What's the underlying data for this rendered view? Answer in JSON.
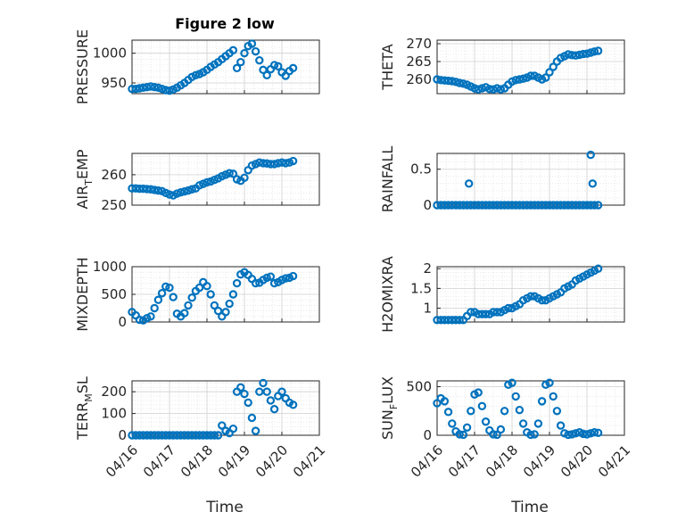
{
  "figure": {
    "title": "Figure 2 low",
    "xlabel": "Time"
  },
  "colors": {
    "series": "#0072BD",
    "axis": "#262626",
    "grid": "#d0d0d0"
  },
  "chart_data": [
    {
      "type": "scatter",
      "ylabel": "PRESSURE",
      "title": "Figure 2 low",
      "xlim": [
        0,
        5
      ],
      "ylim": [
        932,
        1022
      ],
      "yticks": [
        950,
        1000
      ],
      "show_xticklabels": false,
      "x": [
        0.0,
        0.1,
        0.2,
        0.3,
        0.4,
        0.5,
        0.6,
        0.7,
        0.8,
        0.9,
        1.0,
        1.1,
        1.2,
        1.3,
        1.4,
        1.5,
        1.6,
        1.7,
        1.8,
        1.9,
        2.0,
        2.1,
        2.2,
        2.3,
        2.4,
        2.5,
        2.6,
        2.7,
        2.8,
        2.9,
        3.0,
        3.1,
        3.2,
        3.3,
        3.4,
        3.5,
        3.6,
        3.7,
        3.8,
        3.9,
        4.0,
        4.1,
        4.2,
        4.3
      ],
      "y": [
        940,
        940,
        941,
        942,
        943,
        944,
        943,
        942,
        940,
        938,
        937,
        939,
        942,
        946,
        950,
        955,
        960,
        963,
        965,
        968,
        972,
        977,
        981,
        985,
        990,
        995,
        1000,
        1005,
        975,
        985,
        1000,
        1012,
        1016,
        1003,
        988,
        972,
        963,
        973,
        980,
        978,
        968,
        962,
        970,
        975
      ]
    },
    {
      "type": "scatter",
      "ylabel": "THETA",
      "xlim": [
        0,
        5
      ],
      "ylim": [
        256,
        271
      ],
      "yticks": [
        260,
        265,
        270
      ],
      "show_xticklabels": false,
      "x": [
        0.0,
        0.1,
        0.2,
        0.3,
        0.4,
        0.5,
        0.6,
        0.7,
        0.8,
        0.9,
        1.0,
        1.1,
        1.2,
        1.3,
        1.4,
        1.5,
        1.6,
        1.7,
        1.8,
        1.9,
        2.0,
        2.1,
        2.2,
        2.3,
        2.4,
        2.5,
        2.6,
        2.7,
        2.8,
        2.9,
        3.0,
        3.1,
        3.2,
        3.3,
        3.4,
        3.5,
        3.6,
        3.7,
        3.8,
        3.9,
        4.0,
        4.1,
        4.2,
        4.3
      ],
      "y": [
        260,
        259.8,
        259.7,
        259.6,
        259.5,
        259.3,
        259,
        258.8,
        258.5,
        258,
        257.5,
        257.2,
        257.5,
        257.8,
        257.3,
        257.2,
        257.5,
        257.2,
        257.5,
        258.5,
        259.4,
        259.8,
        260,
        260.2,
        260.5,
        261,
        261,
        260.5,
        260,
        260.5,
        262,
        263.5,
        265,
        266,
        266.5,
        267,
        266.8,
        266.7,
        266.9,
        267.1,
        267.2,
        267.5,
        267.8,
        268
      ]
    },
    {
      "type": "scatter",
      "ylabel": "AIR_TEMP",
      "xlim": [
        0,
        5
      ],
      "ylim": [
        250,
        267
      ],
      "yticks": [
        250,
        260
      ],
      "show_xticklabels": false,
      "x": [
        0.0,
        0.1,
        0.2,
        0.3,
        0.4,
        0.5,
        0.6,
        0.7,
        0.8,
        0.9,
        1.0,
        1.1,
        1.2,
        1.3,
        1.4,
        1.5,
        1.6,
        1.7,
        1.8,
        1.9,
        2.0,
        2.1,
        2.2,
        2.3,
        2.4,
        2.5,
        2.6,
        2.7,
        2.8,
        2.9,
        3.0,
        3.1,
        3.2,
        3.3,
        3.4,
        3.5,
        3.6,
        3.7,
        3.8,
        3.9,
        4.0,
        4.1,
        4.2,
        4.3
      ],
      "y": [
        255.5,
        255.5,
        255.4,
        255.4,
        255.3,
        255.2,
        255,
        254.8,
        254.6,
        254,
        253.5,
        253.2,
        253.8,
        254.2,
        254.5,
        254.8,
        255.2,
        255.5,
        256.5,
        257,
        257.5,
        257.8,
        258.3,
        258.8,
        259.5,
        260,
        260.5,
        260.3,
        258.5,
        258,
        259,
        261.5,
        263,
        263.5,
        264,
        263.8,
        263.7,
        263.5,
        263.5,
        263.8,
        264,
        263.8,
        264,
        264.5
      ]
    },
    {
      "type": "scatter",
      "ylabel": "RAINFALL",
      "xlim": [
        0,
        5
      ],
      "ylim": [
        0,
        0.72
      ],
      "yticks": [
        0,
        0.5
      ],
      "show_xticklabels": false,
      "x": [
        0.0,
        0.1,
        0.2,
        0.3,
        0.4,
        0.5,
        0.6,
        0.7,
        0.8,
        0.9,
        1.0,
        1.1,
        1.2,
        1.3,
        1.4,
        1.5,
        1.6,
        1.7,
        1.8,
        1.9,
        2.0,
        2.1,
        2.2,
        2.3,
        2.4,
        2.5,
        2.6,
        2.7,
        2.8,
        2.9,
        3.0,
        3.1,
        3.2,
        3.3,
        3.4,
        3.5,
        3.6,
        3.7,
        3.8,
        3.9,
        4.0,
        4.1,
        4.2,
        4.3,
        0.85,
        4.1,
        4.15
      ],
      "y": [
        0,
        0,
        0,
        0,
        0,
        0,
        0,
        0,
        0,
        0,
        0,
        0,
        0,
        0,
        0,
        0,
        0,
        0,
        0,
        0,
        0,
        0,
        0,
        0,
        0,
        0,
        0,
        0,
        0,
        0,
        0,
        0,
        0,
        0,
        0,
        0,
        0,
        0,
        0,
        0,
        0,
        0,
        0,
        0,
        0.3,
        0.7,
        0.3
      ]
    },
    {
      "type": "scatter",
      "ylabel": "MIXDEPTH",
      "xlim": [
        0,
        5
      ],
      "ylim": [
        0,
        1000
      ],
      "yticks": [
        0,
        500,
        1000
      ],
      "show_xticklabels": false,
      "x": [
        0.0,
        0.1,
        0.2,
        0.3,
        0.4,
        0.5,
        0.6,
        0.7,
        0.8,
        0.9,
        1.0,
        1.1,
        1.2,
        1.3,
        1.4,
        1.5,
        1.6,
        1.7,
        1.8,
        1.9,
        2.0,
        2.1,
        2.2,
        2.3,
        2.4,
        2.5,
        2.6,
        2.7,
        2.8,
        2.9,
        3.0,
        3.1,
        3.2,
        3.3,
        3.4,
        3.5,
        3.6,
        3.7,
        3.8,
        3.9,
        4.0,
        4.1,
        4.2,
        4.3
      ],
      "y": [
        180,
        120,
        40,
        30,
        70,
        100,
        250,
        400,
        520,
        640,
        620,
        450,
        150,
        100,
        160,
        300,
        440,
        560,
        620,
        720,
        650,
        500,
        300,
        200,
        100,
        180,
        330,
        500,
        700,
        860,
        900,
        850,
        780,
        700,
        710,
        760,
        800,
        820,
        700,
        720,
        760,
        790,
        800,
        830
      ]
    },
    {
      "type": "scatter",
      "ylabel": "H2OMIXRA",
      "xlim": [
        0,
        5
      ],
      "ylim": [
        0.65,
        2.05
      ],
      "yticks": [
        1,
        1.5,
        2
      ],
      "show_xticklabels": false,
      "x": [
        0.0,
        0.1,
        0.2,
        0.3,
        0.4,
        0.5,
        0.6,
        0.7,
        0.8,
        0.9,
        1.0,
        1.1,
        1.2,
        1.3,
        1.4,
        1.5,
        1.6,
        1.7,
        1.8,
        1.9,
        2.0,
        2.1,
        2.2,
        2.3,
        2.4,
        2.5,
        2.6,
        2.7,
        2.8,
        2.9,
        3.0,
        3.1,
        3.2,
        3.3,
        3.4,
        3.5,
        3.6,
        3.7,
        3.8,
        3.9,
        4.0,
        4.1,
        4.2,
        4.3
      ],
      "y": [
        0.7,
        0.7,
        0.7,
        0.7,
        0.7,
        0.7,
        0.7,
        0.7,
        0.8,
        0.9,
        0.9,
        0.85,
        0.85,
        0.85,
        0.85,
        0.9,
        0.9,
        0.9,
        0.95,
        1.0,
        1.0,
        1.05,
        1.1,
        1.2,
        1.25,
        1.3,
        1.3,
        1.25,
        1.2,
        1.2,
        1.25,
        1.3,
        1.35,
        1.4,
        1.5,
        1.55,
        1.6,
        1.7,
        1.75,
        1.8,
        1.85,
        1.9,
        1.95,
        2.0
      ]
    },
    {
      "type": "scatter",
      "ylabel": "TERR_MSL",
      "xlim": [
        0,
        5
      ],
      "ylim": [
        0,
        250
      ],
      "yticks": [
        0,
        100,
        200
      ],
      "xticks": [
        "04/16",
        "04/17",
        "04/18",
        "04/19",
        "04/20",
        "04/21"
      ],
      "show_xticklabels": true,
      "x": [
        0.0,
        0.1,
        0.2,
        0.3,
        0.4,
        0.5,
        0.6,
        0.7,
        0.8,
        0.9,
        1.0,
        1.1,
        1.2,
        1.3,
        1.4,
        1.5,
        1.6,
        1.7,
        1.8,
        1.9,
        2.0,
        2.1,
        2.2,
        2.3,
        2.4,
        2.5,
        2.6,
        2.7,
        2.8,
        2.9,
        3.0,
        3.1,
        3.2,
        3.3,
        3.4,
        3.5,
        3.6,
        3.7,
        3.8,
        3.9,
        4.0,
        4.1,
        4.2,
        4.3
      ],
      "y": [
        0,
        0,
        0,
        0,
        0,
        0,
        0,
        0,
        0,
        0,
        0,
        0,
        0,
        0,
        0,
        0,
        0,
        0,
        0,
        0,
        0,
        0,
        0,
        0,
        45,
        20,
        10,
        30,
        200,
        220,
        190,
        150,
        80,
        20,
        200,
        240,
        200,
        160,
        120,
        180,
        200,
        170,
        150,
        140
      ]
    },
    {
      "type": "scatter",
      "ylabel": "SUN_FLUX",
      "xlim": [
        0,
        5
      ],
      "ylim": [
        0,
        560
      ],
      "yticks": [
        0,
        500
      ],
      "xticks": [
        "04/16",
        "04/17",
        "04/18",
        "04/19",
        "04/20",
        "04/21"
      ],
      "show_xticklabels": true,
      "x": [
        0.0,
        0.1,
        0.2,
        0.3,
        0.4,
        0.5,
        0.6,
        0.7,
        0.8,
        0.9,
        1.0,
        1.1,
        1.2,
        1.3,
        1.4,
        1.5,
        1.6,
        1.7,
        1.8,
        1.9,
        2.0,
        2.1,
        2.2,
        2.3,
        2.4,
        2.5,
        2.6,
        2.7,
        2.8,
        2.9,
        3.0,
        3.1,
        3.2,
        3.3,
        3.4,
        3.5,
        3.6,
        3.7,
        3.8,
        3.9,
        4.0,
        4.1,
        4.2,
        4.3
      ],
      "y": [
        330,
        380,
        350,
        240,
        120,
        40,
        10,
        5,
        80,
        250,
        420,
        440,
        300,
        140,
        50,
        10,
        5,
        60,
        250,
        520,
        540,
        400,
        260,
        120,
        30,
        5,
        10,
        120,
        350,
        520,
        540,
        400,
        250,
        100,
        20,
        5,
        10,
        20,
        30,
        15,
        10,
        20,
        30,
        25
      ]
    }
  ]
}
